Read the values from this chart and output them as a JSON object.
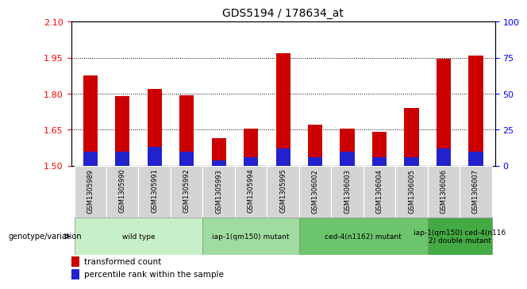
{
  "title": "GDS5194 / 178634_at",
  "categories": [
    "GSM1305989",
    "GSM1305990",
    "GSM1305991",
    "GSM1305992",
    "GSM1305993",
    "GSM1305994",
    "GSM1305995",
    "GSM1306002",
    "GSM1306003",
    "GSM1306004",
    "GSM1306005",
    "GSM1306006",
    "GSM1306007"
  ],
  "red_values": [
    1.875,
    1.79,
    1.82,
    1.795,
    1.615,
    1.655,
    1.97,
    1.67,
    1.655,
    1.64,
    1.74,
    1.945,
    1.96
  ],
  "blue_pct": [
    10,
    10,
    13,
    10,
    4,
    6,
    12,
    6,
    10,
    6,
    6,
    12,
    10
  ],
  "ymin": 1.5,
  "ymax": 2.1,
  "y2min": 0,
  "y2max": 100,
  "yticks_left": [
    1.5,
    1.65,
    1.8,
    1.95,
    2.1
  ],
  "yticks_right": [
    0,
    25,
    50,
    75,
    100
  ],
  "bar_color": "#cc0000",
  "blue_color": "#2222cc",
  "plot_bg": "#ffffff",
  "xticklabel_bg": "#d4d4d4",
  "genotype_groups": [
    {
      "label": "wild type",
      "start": 0,
      "end": 3,
      "color": "#c8f0c8"
    },
    {
      "label": "iap-1(qm150) mutant",
      "start": 4,
      "end": 6,
      "color": "#a0dca0"
    },
    {
      "label": "ced-4(n1162) mutant",
      "start": 7,
      "end": 10,
      "color": "#6cc46c"
    },
    {
      "label": "iap-1(qm150) ced-4(n116\n2) double mutant",
      "start": 11,
      "end": 12,
      "color": "#44aa44"
    }
  ],
  "legend_label_red": "transformed count",
  "legend_label_blue": "percentile rank within the sample",
  "genotype_label": "genotype/variation",
  "bar_width": 0.45
}
